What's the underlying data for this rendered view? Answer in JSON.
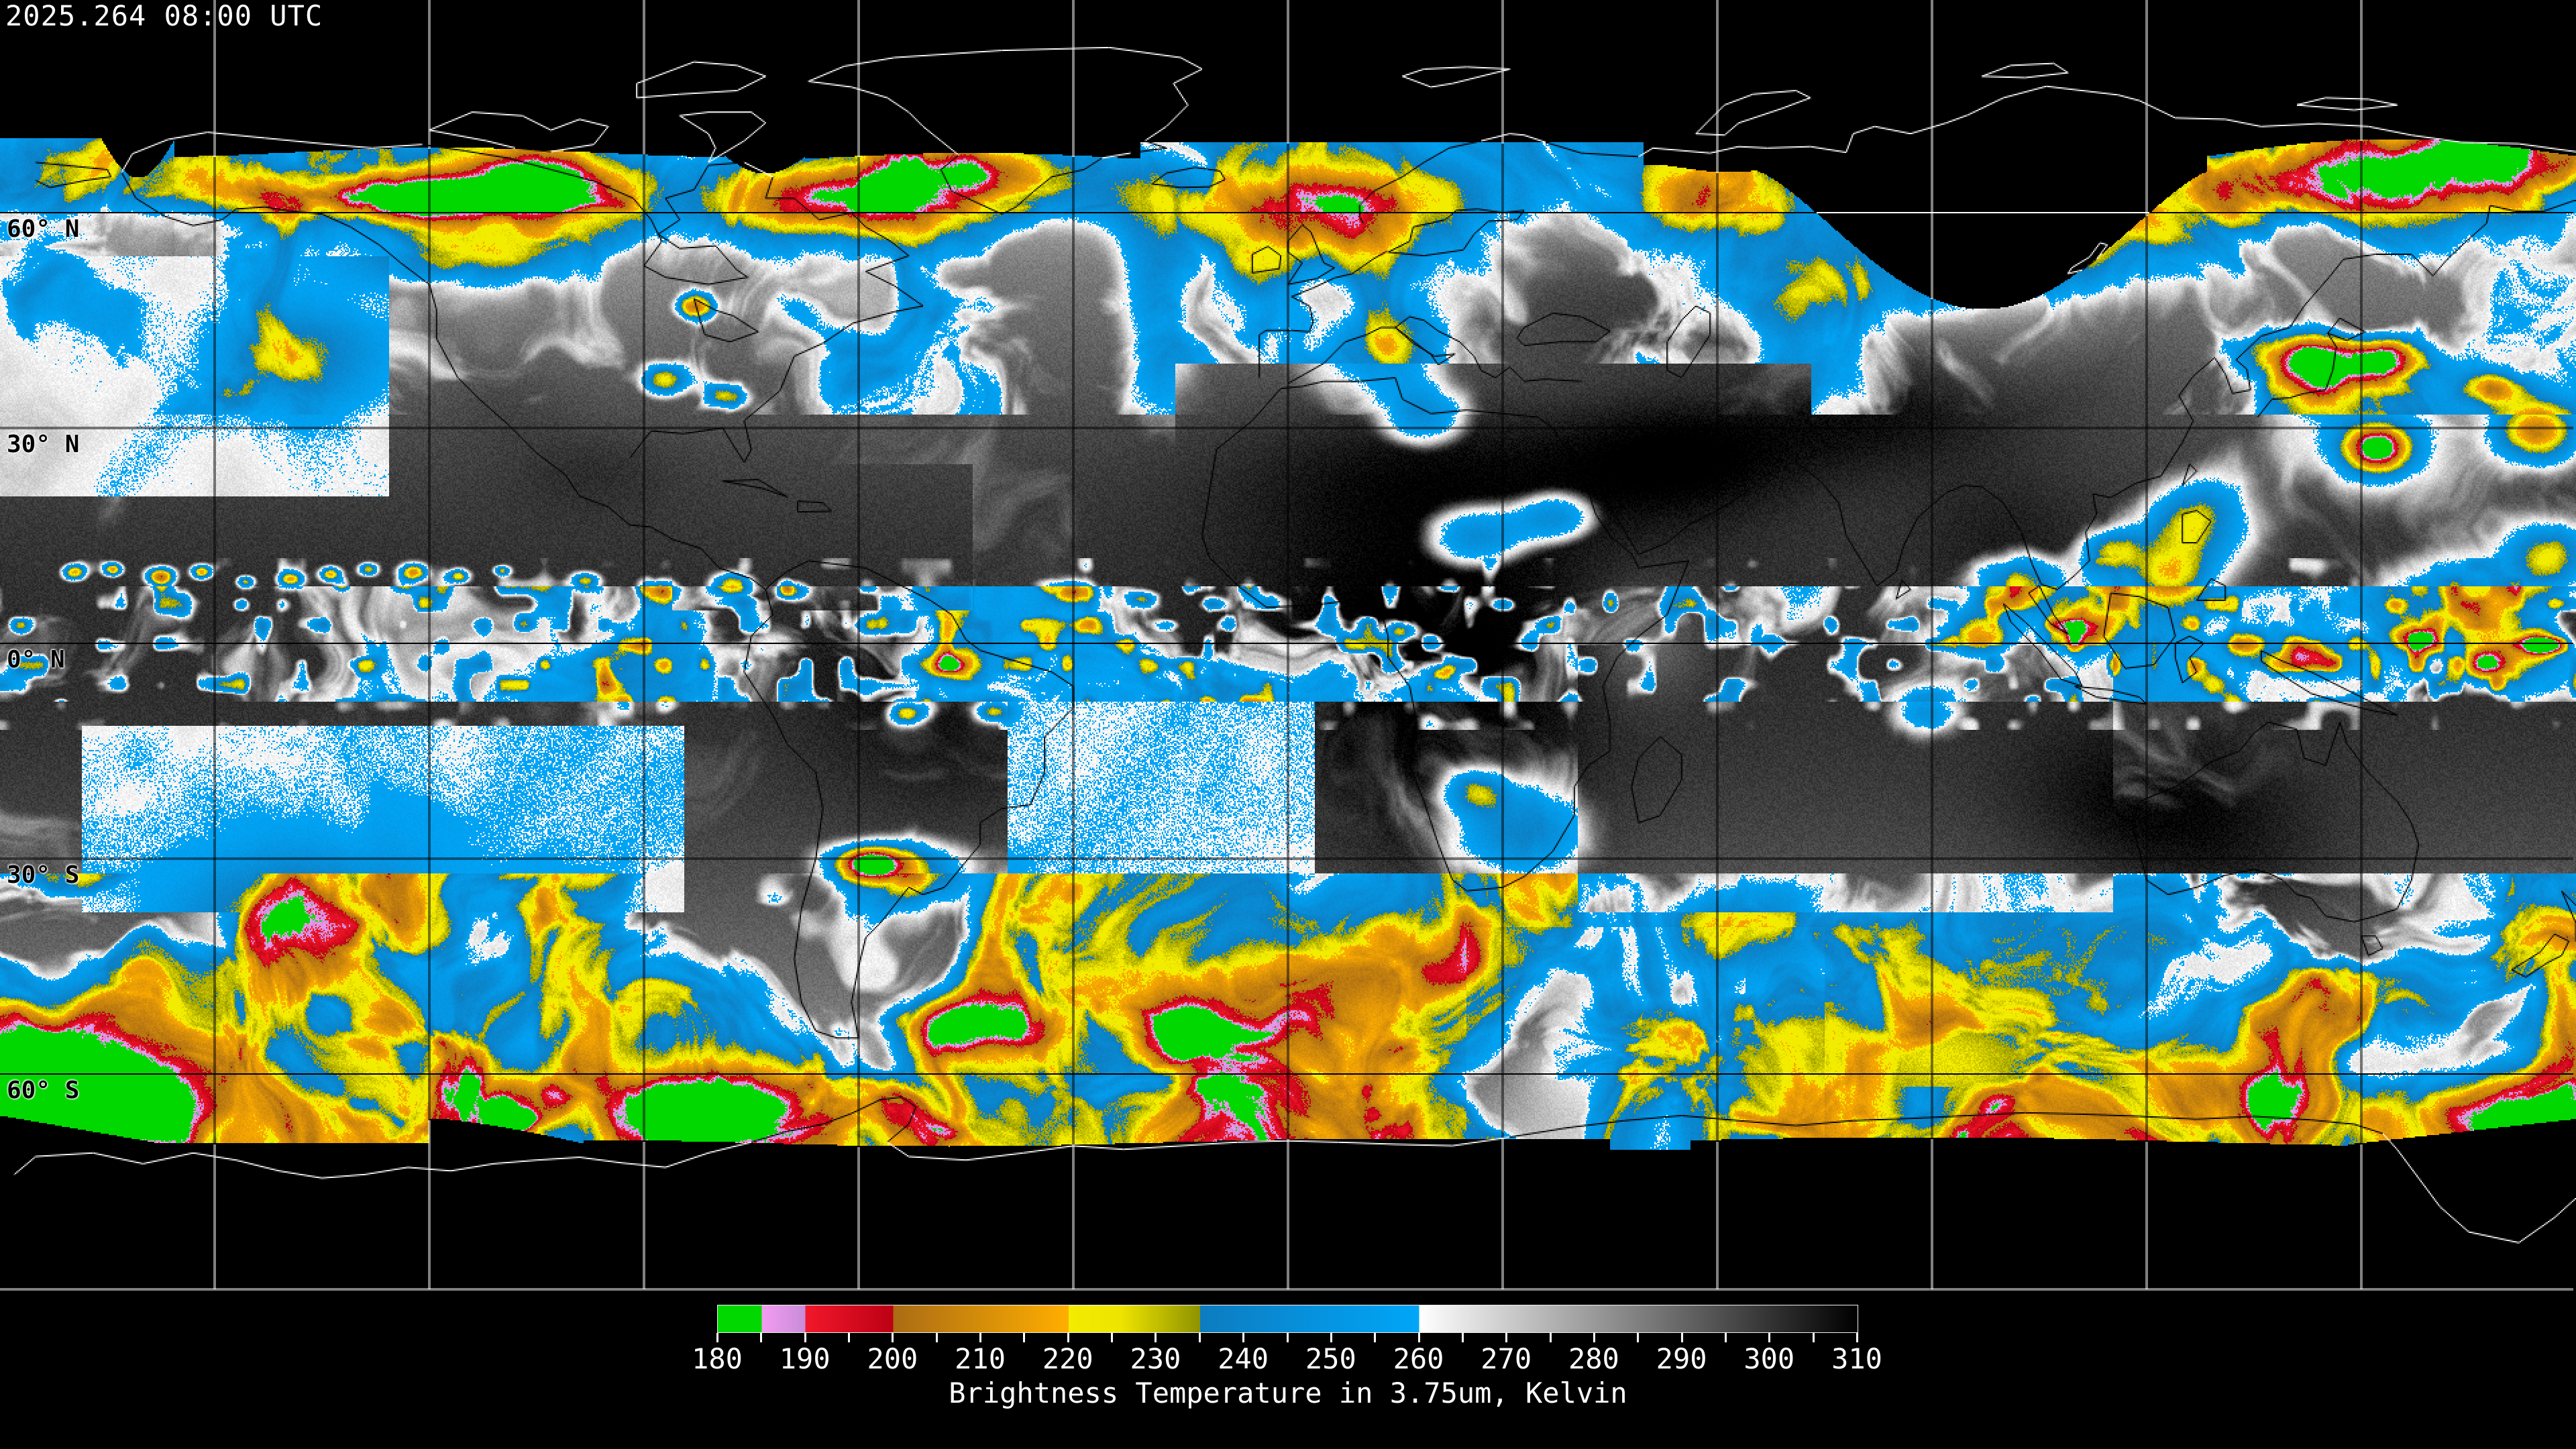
{
  "header": {
    "timestamp": "2025.264 08:00 UTC"
  },
  "map": {
    "projection": "equirectangular-global-composite",
    "band": "3.75um",
    "grid_spacing_deg": 30,
    "lat_gridline_labels": [
      {
        "label": "60° N",
        "lat": 60
      },
      {
        "label": "30° N",
        "lat": 30
      },
      {
        "label": "0° N",
        "lat": 0
      },
      {
        "label": "30° S",
        "lat": -30
      },
      {
        "label": "60° S",
        "lat": -60
      }
    ]
  },
  "colorbar": {
    "title": "Brightness Temperature in 3.75um, Kelvin",
    "unit": "Kelvin",
    "min": 180,
    "max": 310,
    "major_tick_labels": [
      "180",
      "190",
      "200",
      "210",
      "220",
      "230",
      "240",
      "250",
      "260",
      "270",
      "280",
      "290",
      "300",
      "310"
    ],
    "minor_tick_step": 5,
    "gradient_stops": [
      {
        "k": 180,
        "color": "#00d800"
      },
      {
        "k": 185,
        "color": "#00d800"
      },
      {
        "k": 185,
        "color": "#f49cf0"
      },
      {
        "k": 190,
        "color": "#c88cd8"
      },
      {
        "k": 190,
        "color": "#f2182a"
      },
      {
        "k": 200,
        "color": "#bc0014"
      },
      {
        "k": 200,
        "color": "#aa6c14"
      },
      {
        "k": 220,
        "color": "#ffae00"
      },
      {
        "k": 220,
        "color": "#f2ec00"
      },
      {
        "k": 226,
        "color": "#eee400"
      },
      {
        "k": 226,
        "color": "#eee400"
      },
      {
        "k": 235,
        "color": "#8e9200"
      },
      {
        "k": 235,
        "color": "#0d7cc0"
      },
      {
        "k": 260,
        "color": "#00a6f8"
      },
      {
        "k": 260,
        "color": "#ffffff"
      },
      {
        "k": 310,
        "color": "#000000"
      }
    ]
  }
}
